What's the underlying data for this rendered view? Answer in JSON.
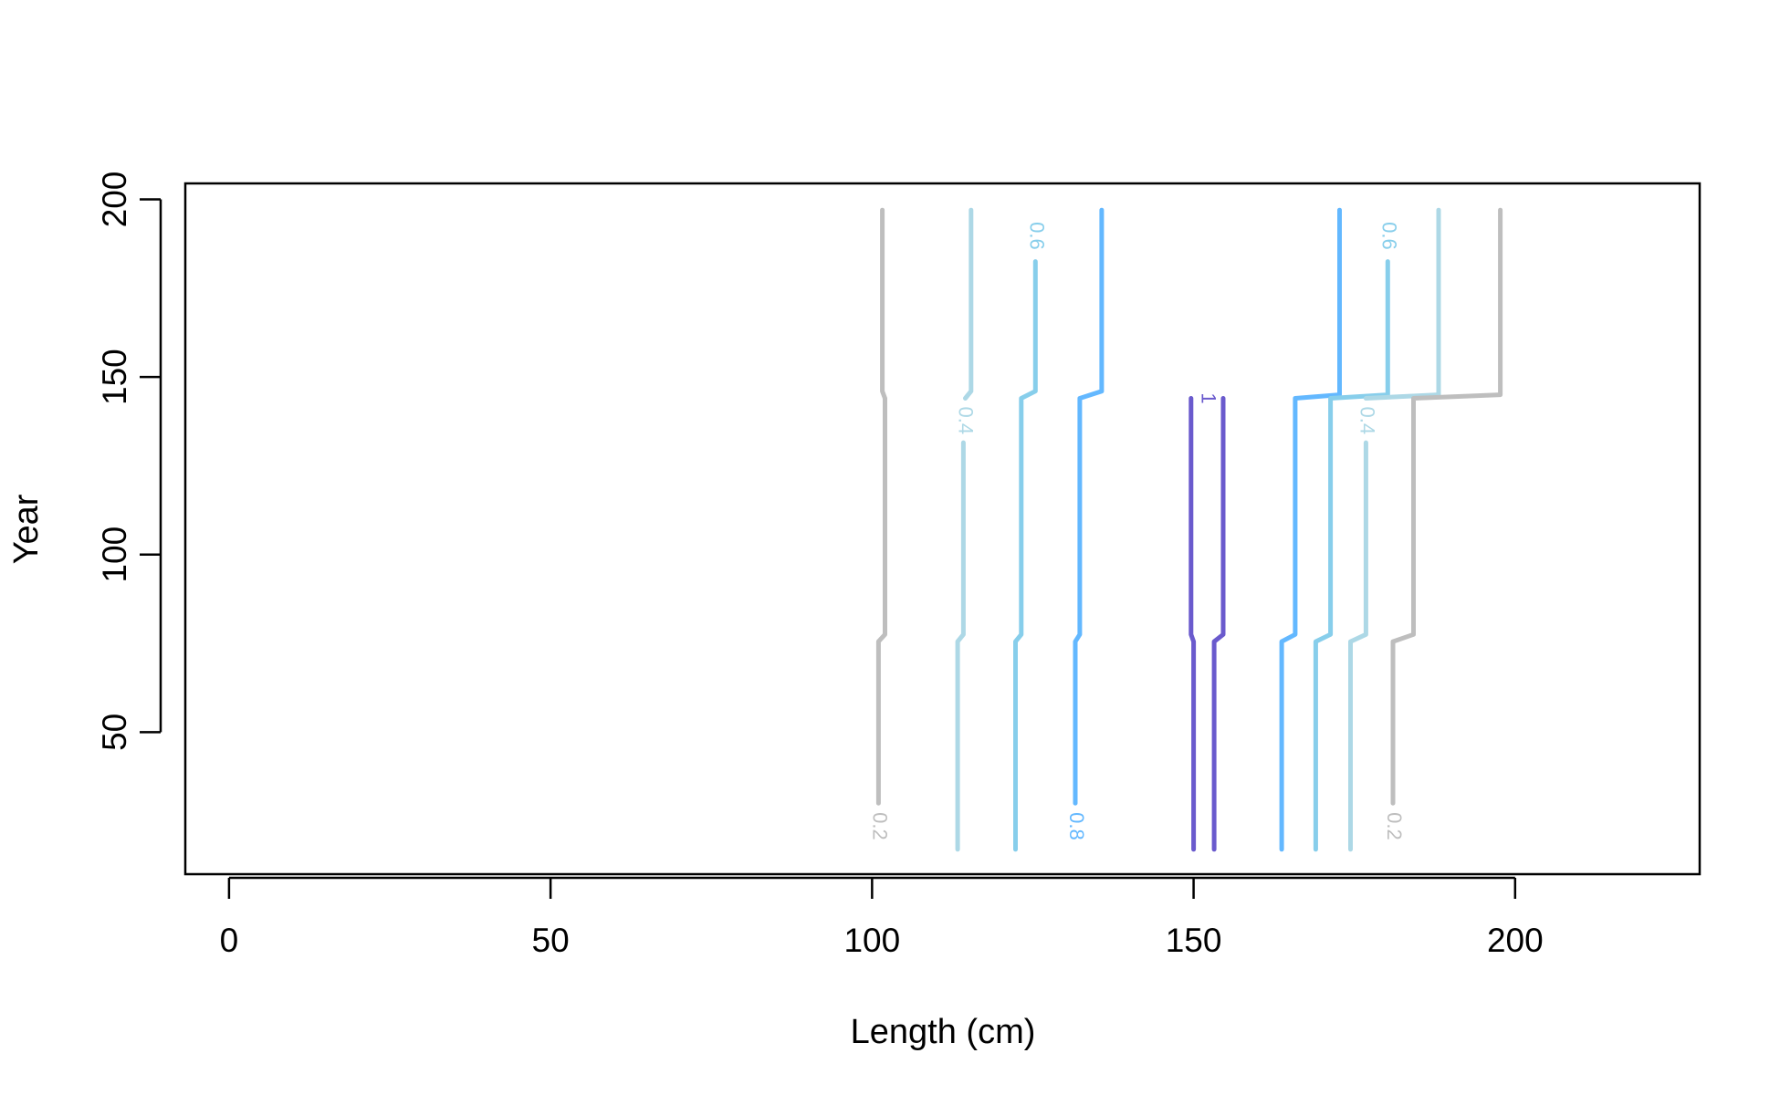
{
  "chart_data": {
    "type": "contour",
    "xlabel": "Length (cm)",
    "ylabel": "Year",
    "xlim": [
      -6.8,
      228.7
    ],
    "ylim": [
      10,
      204.5
    ],
    "xticks": [
      0,
      50,
      100,
      150,
      200
    ],
    "yticks": [
      50,
      100,
      150,
      200
    ],
    "series": [
      {
        "level": 0.2,
        "color": "#bebebe",
        "x": [
          101,
          null,
          101,
          101,
          102,
          102,
          101.6,
          101.6
        ],
        "y": [
          17,
          null,
          30,
          75.5,
          77.5,
          144,
          146,
          197
        ]
      },
      {
        "level": 0.4,
        "color": "#add8e6",
        "x": [
          113.3,
          113.3,
          114.2,
          114.2,
          null,
          114.5,
          115.4,
          115.4
        ],
        "y": [
          17,
          75.5,
          77.5,
          131.5,
          null,
          144,
          146,
          197
        ]
      },
      {
        "level": 0.6,
        "color": "#87ceeb",
        "x": [
          122.3,
          122.3,
          123.2,
          123.2,
          125.4,
          125.4,
          null,
          125.4
        ],
        "y": [
          17,
          75.5,
          77.5,
          144,
          146,
          182.5,
          null,
          197
        ]
      },
      {
        "level": 0.8,
        "color": "#63b8ff",
        "x": [
          131.6,
          null,
          131.6,
          131.6,
          132.3,
          132.3,
          135.7,
          135.7
        ],
        "y": [
          17,
          null,
          30,
          75.5,
          77.5,
          144,
          146,
          197
        ]
      },
      {
        "level": 1,
        "color": "#6a5acd",
        "x": [
          150,
          150,
          149.6,
          149.6,
          null,
          154.6,
          154.6,
          153.2,
          153.2
        ],
        "y": [
          17,
          75.5,
          77.5,
          144,
          null,
          144,
          77.5,
          75.5,
          17
        ]
      },
      {
        "level": 0.8,
        "color": "#63b8ff",
        "x": [
          163.7,
          163.7,
          165.8,
          165.8,
          172.7,
          172.7
        ],
        "y": [
          17,
          75.5,
          77.5,
          144,
          145,
          197
        ]
      },
      {
        "level": 0.6,
        "color": "#87ceeb",
        "x": [
          169,
          169,
          171.3,
          171.3,
          180.2,
          180.2,
          null,
          180.2
        ],
        "y": [
          17,
          75.5,
          77.5,
          144,
          145,
          182.5,
          null,
          197
        ]
      },
      {
        "level": 0.4,
        "color": "#add8e6",
        "x": [
          174.4,
          174.4,
          176.8,
          176.8,
          null,
          176.8,
          188.1,
          188.1
        ],
        "y": [
          17,
          75.5,
          77.5,
          131.5,
          null,
          144,
          145,
          197
        ]
      },
      {
        "level": 0.2,
        "color": "#bebebe",
        "x": [
          181,
          null,
          181,
          181,
          184.2,
          184.2,
          197.7,
          197.7
        ],
        "y": [
          17,
          null,
          30,
          75.5,
          77.5,
          144,
          145,
          197
        ]
      }
    ]
  }
}
